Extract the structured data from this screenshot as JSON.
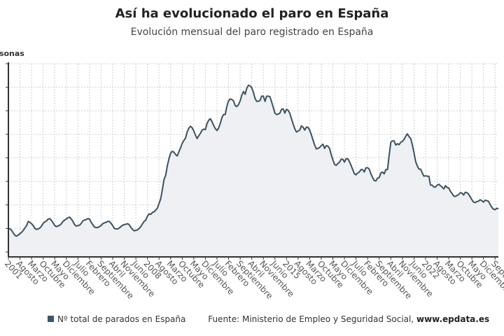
{
  "header": {
    "title": "Así ha evolucionado el paro en España",
    "subtitle": "Evolución mensual del paro registrado en España"
  },
  "legend": {
    "series_label": "Nº total de parados en España",
    "source_prefix": "Fuente: Ministerio de Empleo y Seguridad Social,",
    "source_site": "www.epdata.es"
  },
  "colors": {
    "line": "#3d5260",
    "fill": "#eef0f3",
    "grid": "#cfcfcf",
    "legend": "#3d5565"
  },
  "chart_data": {
    "type": "area",
    "title": "Así ha evolucionado el paro en España",
    "ylabel": "Personas",
    "xlabel": "",
    "start": "2001-01",
    "end": "2025-09",
    "units": "thousands of people",
    "ylim": [
      1500,
      5500
    ],
    "y_gridlines": [
      1500,
      2000,
      2500,
      3000,
      3500,
      4000,
      4500,
      5000,
      5500
    ],
    "grid": true,
    "legend_position": "bottom",
    "x_tick_labels": [
      "2001",
      "Agosto",
      "Marzo",
      "Octubre",
      "Mayo",
      "Diciembre",
      "Julio",
      "Febrero",
      "Septiembre",
      "Abril",
      "Noviembre",
      "Junio",
      "2008",
      "Agosto",
      "Marzo",
      "Octubre",
      "Mayo",
      "Diciembre",
      "Julio",
      "Febrero",
      "Septiembre",
      "Abril",
      "Noviembre",
      "Junio",
      "2015",
      "Agosto",
      "Marzo",
      "Octubre",
      "Mayo",
      "Diciembre",
      "Julio",
      "Febrero",
      "Septiembre",
      "Abril",
      "Noviembre",
      "Junio",
      "2022",
      "Agosto",
      "Marzo",
      "Octubre",
      "Mayo",
      "Diciembre",
      "Septiembre"
    ],
    "series": [
      {
        "name": "Nº total de parados en España",
        "values": [
          2000,
          1990,
          1960,
          1900,
          1850,
          1840,
          1860,
          1890,
          1920,
          1960,
          2010,
          2060,
          2150,
          2130,
          2100,
          2060,
          2000,
          1980,
          1990,
          2010,
          2050,
          2110,
          2140,
          2160,
          2200,
          2210,
          2170,
          2120,
          2060,
          2040,
          2050,
          2070,
          2100,
          2150,
          2180,
          2200,
          2230,
          2240,
          2200,
          2150,
          2080,
          2050,
          2060,
          2070,
          2110,
          2160,
          2180,
          2190,
          2210,
          2200,
          2130,
          2080,
          2030,
          2020,
          2020,
          2040,
          2060,
          2100,
          2120,
          2130,
          2150,
          2150,
          2110,
          2060,
          2000,
          1990,
          1990,
          2010,
          2040,
          2070,
          2080,
          2090,
          2100,
          2080,
          2020,
          1980,
          1950,
          1960,
          1970,
          2000,
          2040,
          2100,
          2150,
          2180,
          2260,
          2310,
          2300,
          2340,
          2350,
          2390,
          2430,
          2530,
          2630,
          2820,
          3040,
          3130,
          3330,
          3480,
          3600,
          3640,
          3620,
          3570,
          3540,
          3630,
          3710,
          3810,
          3870,
          3920,
          4050,
          4130,
          4170,
          4140,
          4070,
          3980,
          3910,
          3970,
          4020,
          4090,
          4110,
          4100,
          4230,
          4300,
          4330,
          4270,
          4190,
          4120,
          4080,
          4130,
          4230,
          4360,
          4420,
          4420,
          4600,
          4710,
          4750,
          4740,
          4710,
          4610,
          4590,
          4630,
          4710,
          4830,
          4910,
          4850,
          4980,
          5040,
          5030,
          4990,
          4890,
          4760,
          4700,
          4700,
          4720,
          4810,
          4810,
          4700,
          4810,
          4810,
          4800,
          4690,
          4570,
          4450,
          4420,
          4430,
          4450,
          4530,
          4540,
          4450,
          4530,
          4510,
          4450,
          4330,
          4220,
          4120,
          4050,
          4070,
          4090,
          4180,
          4150,
          4090,
          4150,
          4150,
          4090,
          3990,
          3880,
          3770,
          3690,
          3700,
          3720,
          3760,
          3790,
          3700,
          3760,
          3750,
          3700,
          3570,
          3460,
          3360,
          3340,
          3380,
          3410,
          3470,
          3470,
          3410,
          3480,
          3480,
          3420,
          3340,
          3250,
          3160,
          3140,
          3180,
          3200,
          3250,
          3250,
          3200,
          3290,
          3290,
          3260,
          3160,
          3080,
          3020,
          3010,
          3070,
          3080,
          3180,
          3200,
          3160,
          3250,
          3250,
          3550,
          3830,
          3860,
          3860,
          3770,
          3800,
          3780,
          3830,
          3850,
          3890,
          3960,
          4010,
          3950,
          3910,
          3780,
          3610,
          3420,
          3330,
          3260,
          3260,
          3180,
          3110,
          3120,
          3110,
          3110,
          2920,
          2920,
          2880,
          2880,
          2920,
          2940,
          2910,
          2880,
          2840,
          2910,
          2870,
          2860,
          2790,
          2740,
          2690,
          2680,
          2700,
          2720,
          2760,
          2750,
          2710,
          2770,
          2760,
          2730,
          2670,
          2610,
          2560,
          2550,
          2570,
          2580,
          2610,
          2590,
          2560,
          2600,
          2590,
          2580,
          2510,
          2450,
          2410,
          2400,
          2430,
          2420
        ]
      }
    ]
  }
}
